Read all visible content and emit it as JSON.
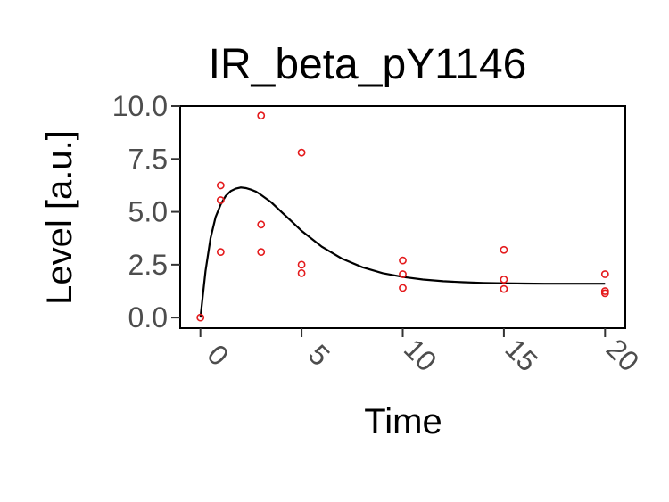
{
  "chart_data": {
    "type": "scatter",
    "title": "IR_beta_pY1146",
    "xlabel": "Time",
    "ylabel": "Level [a.u.]",
    "xlim": [
      -1,
      21
    ],
    "ylim": [
      -0.5,
      10
    ],
    "x_ticks": [
      0,
      5,
      10,
      15,
      20
    ],
    "y_ticks": [
      0.0,
      2.5,
      5.0,
      7.5,
      10.0
    ],
    "y_tick_labels": [
      "0.0",
      "2.5",
      "5.0",
      "7.5",
      "10.0"
    ],
    "grid": false,
    "legend": "none",
    "points_color": "#e41a1c",
    "line_color": "#000000",
    "series": [
      {
        "kind": "points",
        "x": [
          0,
          1,
          1,
          1,
          3,
          3,
          3,
          5,
          5,
          5,
          10,
          10,
          10,
          15,
          15,
          15,
          20,
          20,
          20
        ],
        "y": [
          0.0,
          6.25,
          5.55,
          3.1,
          9.55,
          4.4,
          3.1,
          7.8,
          2.5,
          2.1,
          2.7,
          2.05,
          1.4,
          3.2,
          1.8,
          1.35,
          2.05,
          1.25,
          1.15
        ]
      },
      {
        "kind": "line",
        "x": [
          0,
          0.25,
          0.5,
          0.75,
          1.0,
          1.25,
          1.5,
          1.75,
          2.0,
          2.25,
          2.5,
          2.75,
          3.0,
          3.5,
          4.0,
          4.5,
          5.0,
          6.0,
          7.0,
          8.0,
          9.0,
          10.0,
          11.0,
          12.0,
          13.0,
          14.0,
          15.0,
          16.0,
          17.0,
          18.0,
          19.0,
          20.0
        ],
        "y": [
          0.0,
          2.2,
          3.75,
          4.75,
          5.35,
          5.75,
          5.98,
          6.1,
          6.15,
          6.12,
          6.05,
          5.95,
          5.8,
          5.45,
          5.0,
          4.55,
          4.1,
          3.35,
          2.78,
          2.38,
          2.1,
          1.92,
          1.8,
          1.72,
          1.67,
          1.64,
          1.62,
          1.61,
          1.6,
          1.6,
          1.6,
          1.6
        ]
      }
    ]
  }
}
